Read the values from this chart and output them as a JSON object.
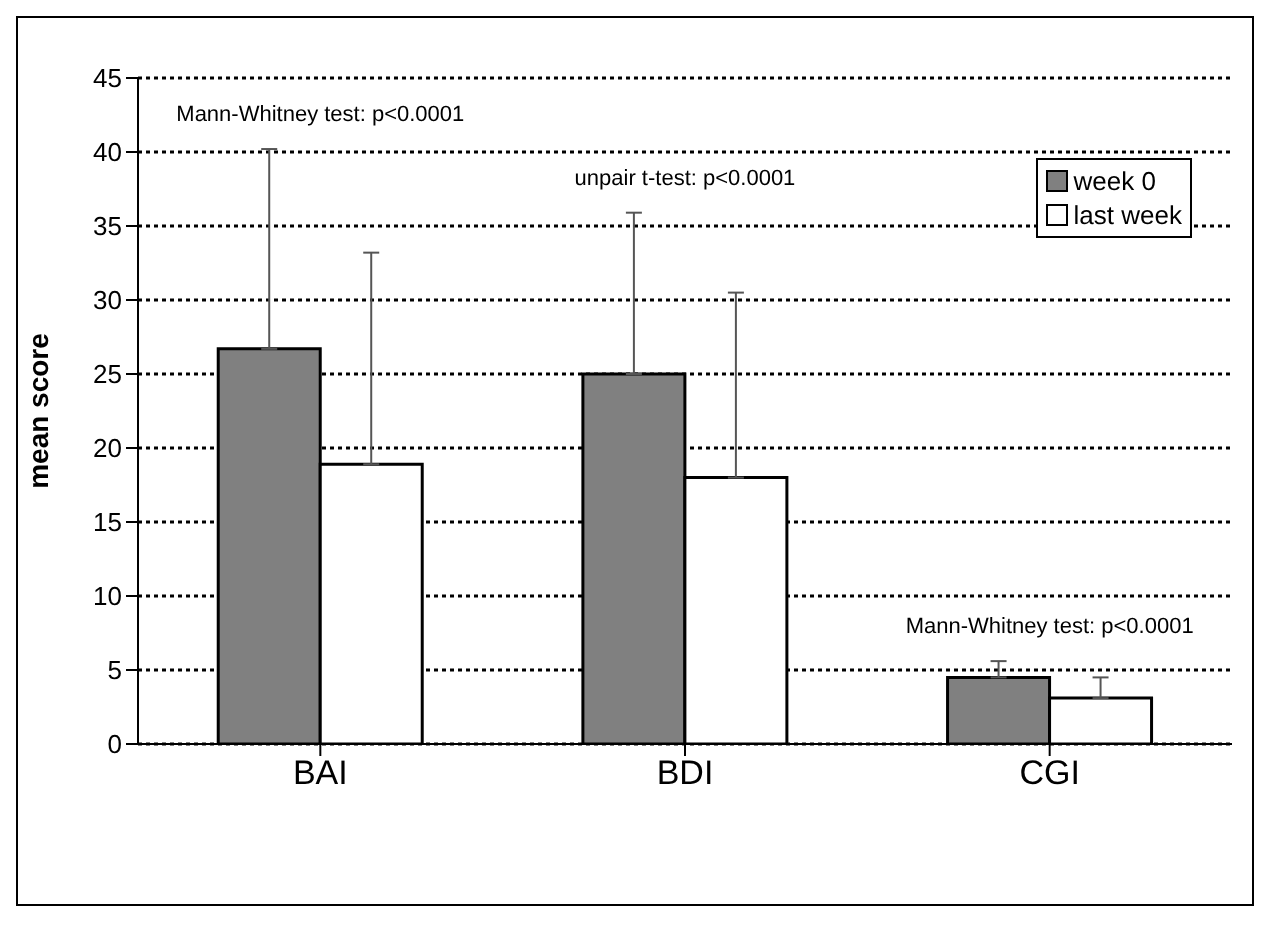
{
  "chart_data": {
    "type": "bar",
    "ylabel": "mean score",
    "categories": [
      "BAI",
      "BDI",
      "CGI"
    ],
    "series": [
      {
        "name": "week 0",
        "color": "#808080",
        "values": [
          26.7,
          25.0,
          4.5
        ],
        "errors": [
          [
            26.7,
            40.2
          ],
          [
            25.0,
            35.9
          ],
          [
            4.5,
            5.6
          ]
        ]
      },
      {
        "name": "last week",
        "color": "#ffffff",
        "values": [
          18.9,
          18.0,
          3.1
        ],
        "errors": [
          [
            18.9,
            33.2
          ],
          [
            18.0,
            30.5
          ],
          [
            3.1,
            4.5
          ]
        ]
      }
    ],
    "ylim": [
      0,
      45
    ],
    "yticks": [
      0,
      5,
      10,
      15,
      20,
      25,
      30,
      35,
      40,
      45
    ],
    "grid": "y",
    "legend": "top right",
    "annotations": [
      "Mann-Whitney test: p<0.0001",
      "unpair t-test: p<0.0001",
      "Mann-Whitney test: p<0.0001"
    ]
  }
}
